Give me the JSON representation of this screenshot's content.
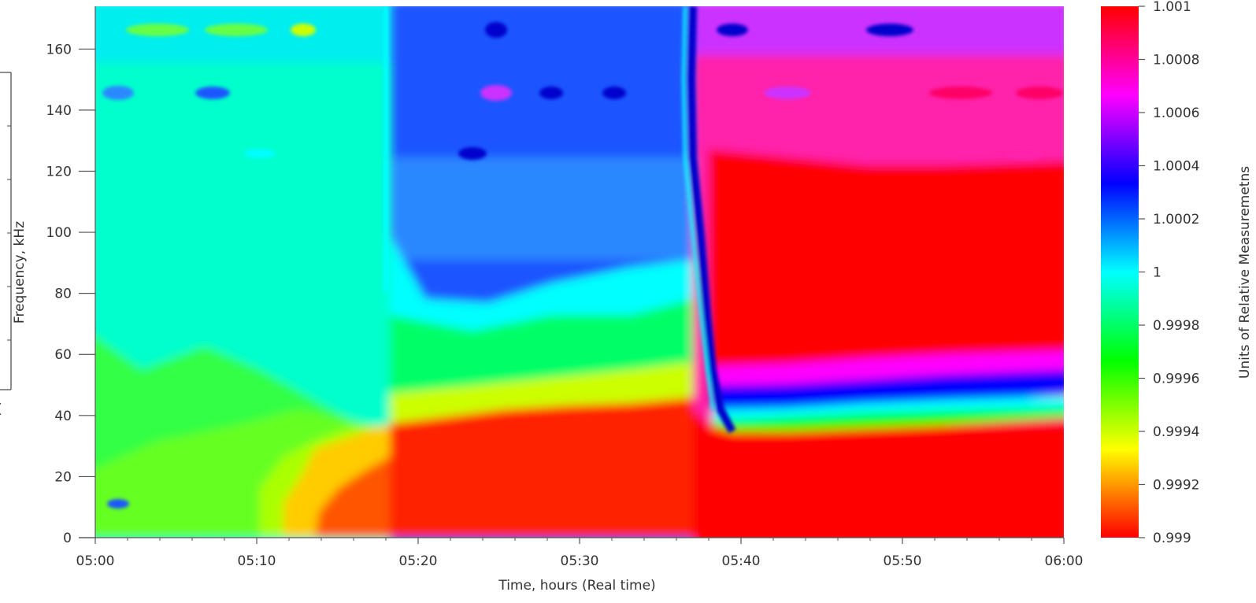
{
  "chart_data": {
    "type": "heatmap",
    "title": "",
    "xlabel": "Time, hours (Real time)",
    "ylabel": "Frequency, kHz",
    "colorbar_label": "Units of Relative Measuremetns",
    "x_ticks": [
      "05:00",
      "05:10",
      "05:20",
      "05:30",
      "05:40",
      "05:50",
      "06:00"
    ],
    "x_range_minutes": [
      0,
      60
    ],
    "y_ticks": [
      "0",
      "20",
      "40",
      "60",
      "80",
      "100",
      "120",
      "140",
      "160"
    ],
    "ylim": [
      0,
      174
    ],
    "colorbar_ticks": [
      "0.999",
      "0.9992",
      "0.9994",
      "0.9996",
      "0.9998",
      "1",
      "1.0002",
      "1.0004",
      "1.0006",
      "1.0008",
      "1.001"
    ],
    "colorbar_range": [
      0.999,
      1.001
    ],
    "colormap": [
      "#ff0000",
      "#ffff00",
      "#00ff00",
      "#00ffff",
      "#0000ff",
      "#ff00ff",
      "#ff0000"
    ],
    "regions": [
      {
        "time_start": "05:00",
        "time_end": "05:18",
        "band": "0-40 kHz",
        "value": 0.9996,
        "color": "#33ff33"
      },
      {
        "time_start": "05:00",
        "time_end": "05:18",
        "band": "40-174 kHz",
        "value": 0.9999,
        "color": "#00ffcc"
      },
      {
        "time_start": "05:18",
        "time_end": "05:38",
        "band": "0-40 kHz",
        "value": 0.999,
        "color": "#ff0000"
      },
      {
        "time_start": "05:18",
        "time_end": "05:38",
        "band": "40-80 kHz",
        "value": 0.9998,
        "color": "#00ff66"
      },
      {
        "time_start": "05:18",
        "time_end": "05:38",
        "band": "80-174 kHz",
        "value": 1.0003,
        "color": "#1a66ff"
      },
      {
        "time_start": "05:39",
        "time_end": "06:00",
        "band": "0-38 kHz",
        "value": 0.999,
        "color": "#ff0000"
      },
      {
        "time_start": "05:39",
        "time_end": "06:00",
        "band": "40-60 kHz",
        "value": 1.0004,
        "color": "#0000ff"
      },
      {
        "time_start": "05:39",
        "time_end": "06:00",
        "band": "60-125 kHz",
        "value": 1.001,
        "color": "#ff0000"
      },
      {
        "time_start": "05:39",
        "time_end": "06:00",
        "band": "125-174 kHz",
        "value": 1.0008,
        "color": "#ff22aa"
      }
    ]
  }
}
